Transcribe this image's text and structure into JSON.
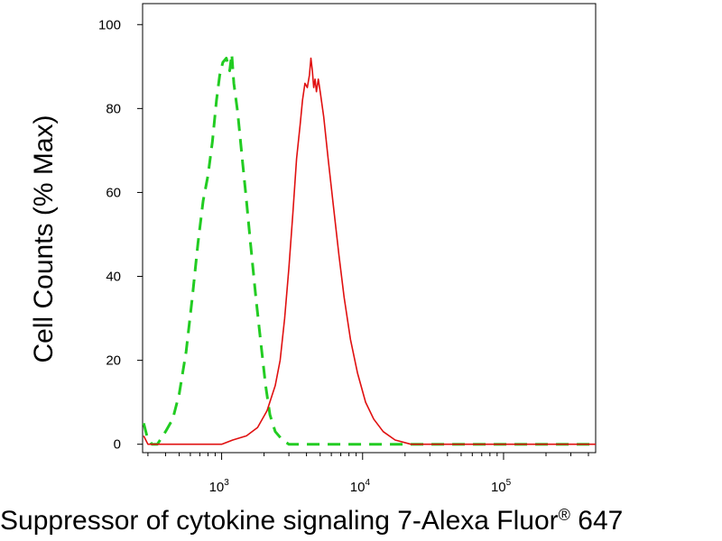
{
  "chart_data": {
    "type": "line",
    "title": "",
    "xlabel": "Suppressor of cytokine signaling 7-Alexa Fluor",
    "xlabel_superscript": "®",
    "xlabel_suffix": " 647",
    "ylabel": "Cell Counts (% Max)",
    "xscale": "log",
    "xlim": [
      275,
      450000
    ],
    "ylim": [
      -2,
      105
    ],
    "yticks": [
      0,
      20,
      40,
      60,
      80,
      100
    ],
    "ytick_labels": [
      "0",
      "20",
      "40",
      "60",
      "80",
      "100"
    ],
    "xticks": [
      1000,
      10000,
      100000
    ],
    "xtick_labels": [
      {
        "base": "10",
        "exp": "3"
      },
      {
        "base": "10",
        "exp": "4"
      },
      {
        "base": "10",
        "exp": "5"
      }
    ],
    "grid": false,
    "legend": "none",
    "series": [
      {
        "color": "#22cc22",
        "style": "dashed",
        "points": [
          [
            280,
            5
          ],
          [
            295,
            2
          ],
          [
            320,
            0
          ],
          [
            350,
            0
          ],
          [
            400,
            3
          ],
          [
            450,
            6
          ],
          [
            500,
            12
          ],
          [
            560,
            22
          ],
          [
            620,
            35
          ],
          [
            680,
            48
          ],
          [
            740,
            58
          ],
          [
            800,
            64
          ],
          [
            860,
            72
          ],
          [
            920,
            82
          ],
          [
            970,
            88
          ],
          [
            1020,
            91
          ],
          [
            1080,
            92
          ],
          [
            1140,
            89
          ],
          [
            1180,
            93
          ],
          [
            1220,
            86
          ],
          [
            1300,
            79
          ],
          [
            1400,
            68
          ],
          [
            1500,
            58
          ],
          [
            1600,
            48
          ],
          [
            1750,
            35
          ],
          [
            1900,
            24
          ],
          [
            2050,
            14
          ],
          [
            2200,
            7
          ],
          [
            2400,
            3
          ],
          [
            2700,
            1
          ],
          [
            3000,
            0
          ],
          [
            5000,
            0
          ],
          [
            20000,
            0
          ],
          [
            100000,
            0
          ],
          [
            450000,
            0
          ]
        ]
      },
      {
        "color": "#e01010",
        "style": "solid",
        "points": [
          [
            280,
            2
          ],
          [
            300,
            0
          ],
          [
            600,
            0
          ],
          [
            900,
            0
          ],
          [
            1000,
            0
          ],
          [
            1200,
            1
          ],
          [
            1500,
            2
          ],
          [
            1800,
            4
          ],
          [
            2100,
            8
          ],
          [
            2400,
            14
          ],
          [
            2600,
            20
          ],
          [
            2800,
            30
          ],
          [
            3000,
            42
          ],
          [
            3200,
            55
          ],
          [
            3400,
            68
          ],
          [
            3600,
            76
          ],
          [
            3750,
            82
          ],
          [
            3900,
            86
          ],
          [
            4050,
            85
          ],
          [
            4200,
            88
          ],
          [
            4300,
            92
          ],
          [
            4400,
            89
          ],
          [
            4500,
            85
          ],
          [
            4600,
            87
          ],
          [
            4700,
            84
          ],
          [
            4850,
            87
          ],
          [
            5000,
            84
          ],
          [
            5300,
            78
          ],
          [
            5700,
            68
          ],
          [
            6200,
            57
          ],
          [
            6800,
            45
          ],
          [
            7400,
            35
          ],
          [
            8200,
            25
          ],
          [
            9200,
            17
          ],
          [
            10500,
            10
          ],
          [
            12000,
            6
          ],
          [
            14000,
            3
          ],
          [
            17000,
            1
          ],
          [
            22000,
            0
          ],
          [
            100000,
            0
          ],
          [
            450000,
            0
          ]
        ]
      }
    ]
  }
}
